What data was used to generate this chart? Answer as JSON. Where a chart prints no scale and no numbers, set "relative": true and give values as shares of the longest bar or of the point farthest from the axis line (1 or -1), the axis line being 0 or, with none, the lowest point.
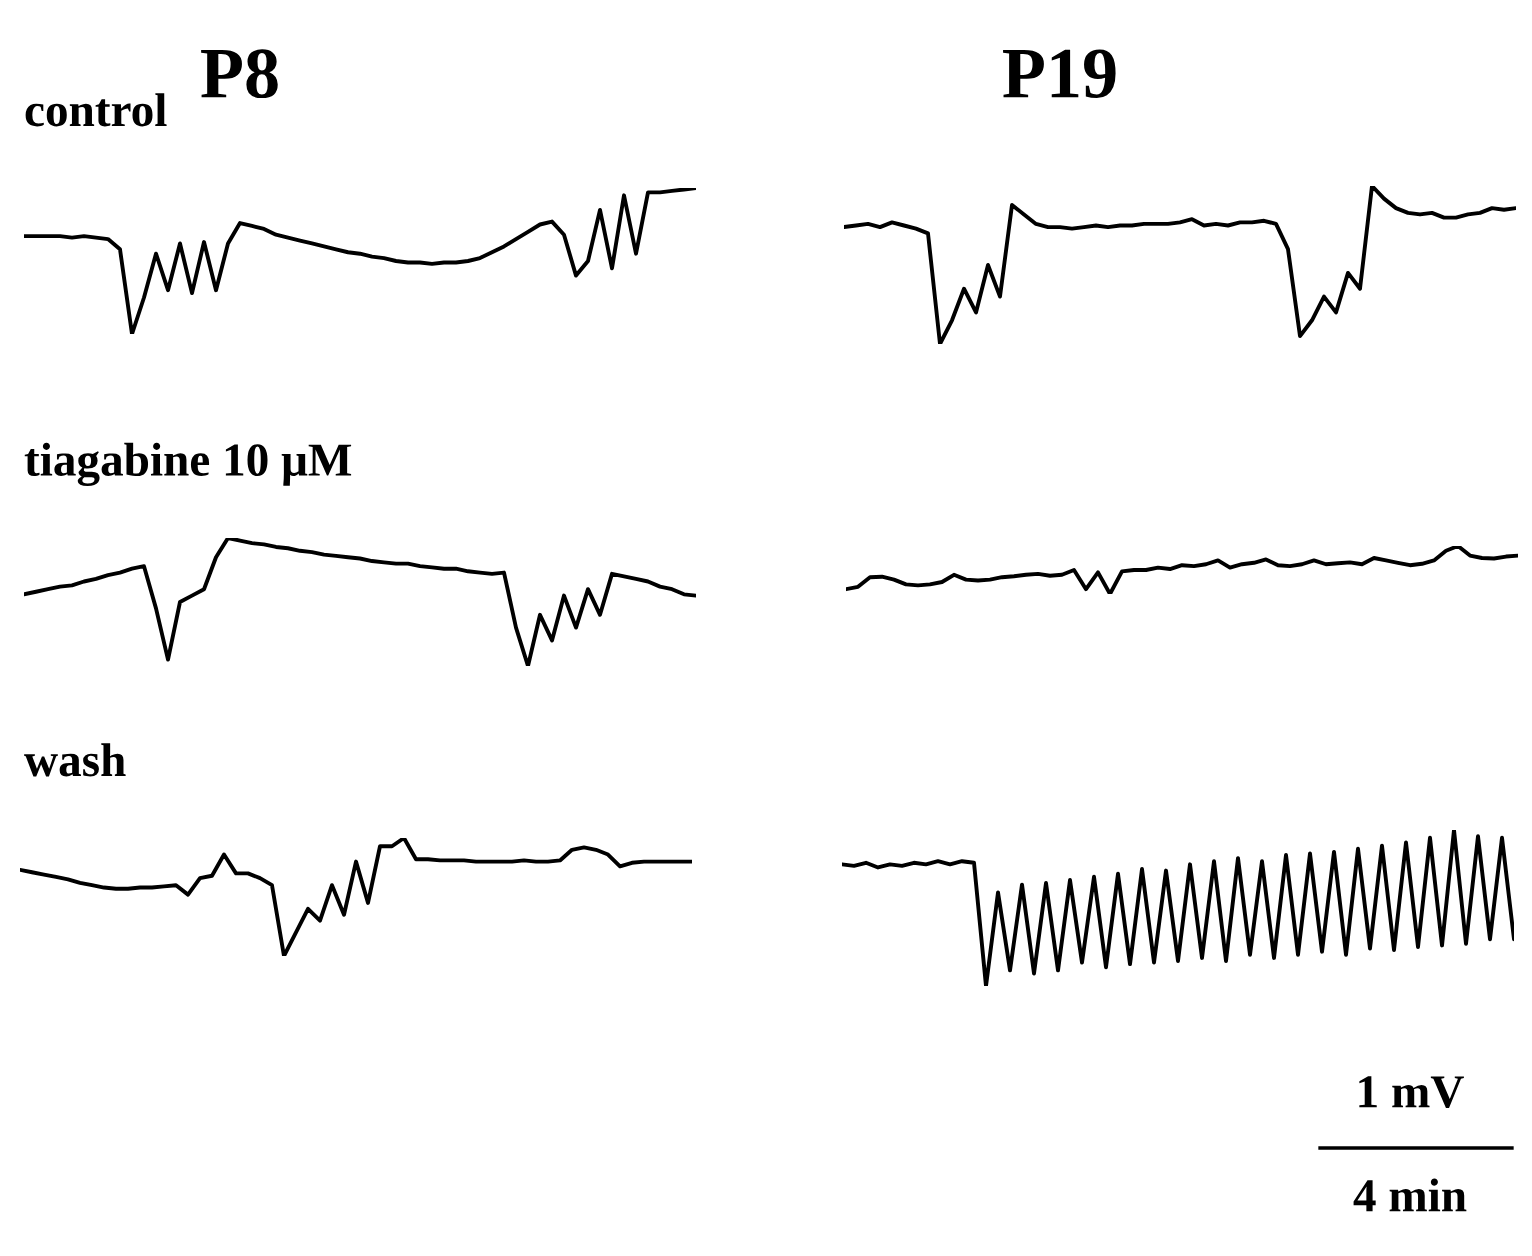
{
  "chart_data": [
    {
      "type": "line",
      "title": "P8",
      "annotations": [
        "control"
      ],
      "relative": true,
      "color": "#000000",
      "categories": [
        null,
        null,
        null,
        null,
        null,
        null,
        null,
        null,
        null,
        null,
        null,
        null,
        null,
        null,
        null,
        null,
        null,
        null,
        null,
        null,
        null,
        null,
        null,
        null,
        null,
        null,
        null,
        null,
        null,
        null,
        null,
        null,
        null,
        null,
        null,
        null,
        null,
        null,
        null,
        null,
        null,
        null,
        null,
        null,
        null,
        null,
        null,
        null,
        null,
        null,
        null,
        null,
        null,
        null,
        null,
        null,
        null
      ],
      "values": [
        0.67,
        0.67,
        0.67,
        0.67,
        0.66,
        0.67,
        0.66,
        0.65,
        0.58,
        0,
        0.25,
        0.55,
        0.3,
        0.62,
        0.28,
        0.63,
        0.3,
        0.62,
        0.76,
        0.74,
        0.72,
        0.68,
        0.66,
        0.64,
        0.62,
        0.6,
        0.58,
        0.56,
        0.55,
        0.53,
        0.52,
        0.5,
        0.49,
        0.49,
        0.48,
        0.49,
        0.49,
        0.5,
        0.52,
        0.56,
        0.6,
        0.65,
        0.7,
        0.75,
        0.77,
        0.68,
        0.4,
        0.5,
        0.85,
        0.45,
        0.95,
        0.55,
        0.97,
        0.97,
        0.98,
        0.99,
        1
      ]
    },
    {
      "type": "line",
      "title": "P19",
      "relative": true,
      "color": "#000000",
      "categories": [
        null,
        null,
        null,
        null,
        null,
        null,
        null,
        null,
        null,
        null,
        null,
        null,
        null,
        null,
        null,
        null,
        null,
        null,
        null,
        null,
        null,
        null,
        null,
        null,
        null,
        null,
        null,
        null,
        null,
        null,
        null,
        null,
        null,
        null,
        null,
        null,
        null,
        null,
        null,
        null,
        null,
        null,
        null,
        null,
        null,
        null,
        null,
        null,
        null,
        null,
        null,
        null,
        null,
        null,
        null,
        null,
        null
      ],
      "values": [
        0.74,
        0.75,
        0.76,
        0.74,
        0.77,
        0.75,
        0.73,
        0.7,
        0,
        0.15,
        0.35,
        0.2,
        0.5,
        0.3,
        0.88,
        0.82,
        0.76,
        0.74,
        0.74,
        0.73,
        0.74,
        0.75,
        0.74,
        0.75,
        0.75,
        0.76,
        0.76,
        0.76,
        0.77,
        0.79,
        0.75,
        0.76,
        0.75,
        0.77,
        0.77,
        0.78,
        0.76,
        0.6,
        0.05,
        0.15,
        0.3,
        0.2,
        0.45,
        0.35,
        1,
        0.92,
        0.86,
        0.83,
        0.82,
        0.83,
        0.8,
        0.8,
        0.82,
        0.83,
        0.86,
        0.85,
        0.86
      ]
    },
    {
      "type": "line",
      "annotations": [
        "tiagabine 10 μM"
      ],
      "relative": true,
      "color": "#000000",
      "categories": [
        null,
        null,
        null,
        null,
        null,
        null,
        null,
        null,
        null,
        null,
        null,
        null,
        null,
        null,
        null,
        null,
        null,
        null,
        null,
        null,
        null,
        null,
        null,
        null,
        null,
        null,
        null,
        null,
        null,
        null,
        null,
        null,
        null,
        null,
        null,
        null,
        null,
        null,
        null,
        null,
        null,
        null,
        null,
        null,
        null,
        null,
        null,
        null,
        null,
        null,
        null,
        null,
        null,
        null,
        null,
        null,
        null
      ],
      "values": [
        0.56,
        0.58,
        0.6,
        0.62,
        0.63,
        0.66,
        0.68,
        0.71,
        0.73,
        0.76,
        0.78,
        0.45,
        0.05,
        0.5,
        0.55,
        0.6,
        0.85,
        1,
        0.98,
        0.96,
        0.95,
        0.93,
        0.92,
        0.9,
        0.89,
        0.87,
        0.86,
        0.85,
        0.84,
        0.82,
        0.81,
        0.8,
        0.8,
        0.78,
        0.77,
        0.76,
        0.76,
        0.74,
        0.73,
        0.72,
        0.73,
        0.3,
        0,
        0.4,
        0.2,
        0.55,
        0.3,
        0.6,
        0.4,
        0.72,
        0.7,
        0.68,
        0.66,
        0.62,
        0.6,
        0.56,
        0.55
      ]
    },
    {
      "type": "line",
      "relative": true,
      "color": "#000000",
      "categories": [
        null,
        null,
        null,
        null,
        null,
        null,
        null,
        null,
        null,
        null,
        null,
        null,
        null,
        null,
        null,
        null,
        null,
        null,
        null,
        null,
        null,
        null,
        null,
        null,
        null,
        null,
        null,
        null,
        null,
        null,
        null,
        null,
        null,
        null,
        null,
        null,
        null,
        null,
        null,
        null,
        null,
        null,
        null,
        null,
        null,
        null,
        null,
        null,
        null,
        null,
        null,
        null,
        null,
        null,
        null,
        null,
        null
      ],
      "values": [
        0.1,
        0.15,
        0.35,
        0.36,
        0.3,
        0.2,
        0.18,
        0.2,
        0.25,
        0.4,
        0.3,
        0.28,
        0.3,
        0.35,
        0.37,
        0.4,
        0.42,
        0.38,
        0.4,
        0.5,
        0.1,
        0.45,
        0,
        0.47,
        0.5,
        0.5,
        0.55,
        0.52,
        0.6,
        0.58,
        0.62,
        0.7,
        0.55,
        0.62,
        0.65,
        0.72,
        0.6,
        0.58,
        0.62,
        0.7,
        0.62,
        0.64,
        0.66,
        0.62,
        0.75,
        0.7,
        0.65,
        0.6,
        0.63,
        0.7,
        0.9,
        1,
        0.8,
        0.75,
        0.74,
        0.78,
        0.8
      ]
    },
    {
      "type": "line",
      "annotations": [
        "wash"
      ],
      "relative": true,
      "color": "#000000",
      "categories": [
        null,
        null,
        null,
        null,
        null,
        null,
        null,
        null,
        null,
        null,
        null,
        null,
        null,
        null,
        null,
        null,
        null,
        null,
        null,
        null,
        null,
        null,
        null,
        null,
        null,
        null,
        null,
        null,
        null,
        null,
        null,
        null,
        null,
        null,
        null,
        null,
        null,
        null,
        null,
        null,
        null,
        null,
        null,
        null,
        null,
        null,
        null,
        null,
        null,
        null,
        null,
        null,
        null,
        null,
        null,
        null,
        null
      ],
      "values": [
        0.73,
        0.71,
        0.69,
        0.67,
        0.65,
        0.62,
        0.6,
        0.58,
        0.57,
        0.57,
        0.58,
        0.58,
        0.59,
        0.6,
        0.52,
        0.66,
        0.68,
        0.86,
        0.7,
        0.7,
        0.66,
        0.6,
        0,
        0.2,
        0.4,
        0.3,
        0.6,
        0.35,
        0.8,
        0.45,
        0.93,
        0.93,
        1,
        0.82,
        0.82,
        0.81,
        0.81,
        0.81,
        0.8,
        0.8,
        0.8,
        0.8,
        0.81,
        0.8,
        0.8,
        0.81,
        0.9,
        0.92,
        0.9,
        0.86,
        0.76,
        0.79,
        0.8,
        0.8,
        0.8,
        0.8,
        0.8
      ]
    },
    {
      "type": "line",
      "annotations": [
        "1 mV",
        "4 min"
      ],
      "relative": true,
      "color": "#000000",
      "categories": [
        null,
        null,
        null,
        null,
        null,
        null,
        null,
        null,
        null,
        null,
        null,
        null,
        null,
        null,
        null,
        null,
        null,
        null,
        null,
        null,
        null,
        null,
        null,
        null,
        null,
        null,
        null,
        null,
        null,
        null,
        null,
        null,
        null,
        null,
        null,
        null,
        null,
        null,
        null,
        null,
        null,
        null,
        null,
        null,
        null,
        null,
        null,
        null,
        null,
        null,
        null,
        null,
        null,
        null,
        null,
        null,
        null
      ],
      "values": [
        0.78,
        0.77,
        0.79,
        0.76,
        0.78,
        0.77,
        0.79,
        0.78,
        0.8,
        0.78,
        0.8,
        0.79,
        0,
        0.6,
        0.1,
        0.65,
        0.08,
        0.66,
        0.1,
        0.68,
        0.15,
        0.7,
        0.12,
        0.72,
        0.14,
        0.75,
        0.15,
        0.74,
        0.16,
        0.78,
        0.18,
        0.8,
        0.16,
        0.82,
        0.2,
        0.8,
        0.18,
        0.84,
        0.2,
        0.85,
        0.22,
        0.86,
        0.2,
        0.88,
        0.24,
        0.9,
        0.23,
        0.92,
        0.25,
        0.95,
        0.26,
        1,
        0.27,
        0.96,
        0.3,
        0.95,
        0.3
      ]
    }
  ]
}
